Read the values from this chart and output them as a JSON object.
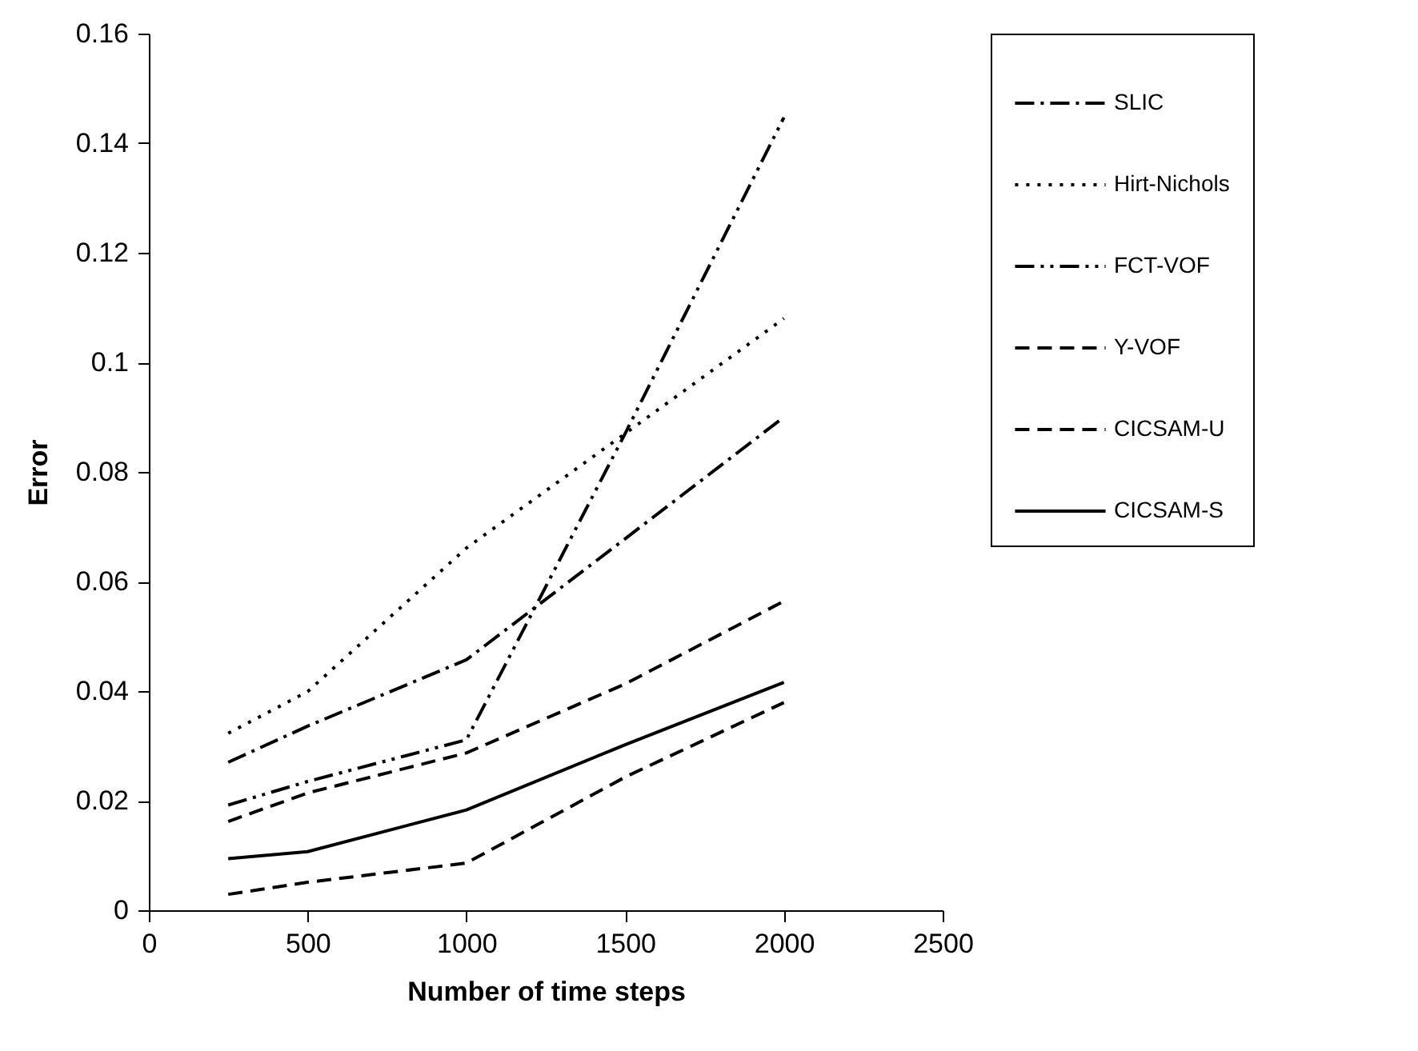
{
  "chart_data": {
    "type": "line",
    "xlabel": "Number of time steps",
    "ylabel": "Error",
    "x": [
      250,
      500,
      1000,
      1500,
      2000
    ],
    "series": [
      {
        "name": "SLIC",
        "color": "#000000",
        "line_style": "dashdot",
        "values": [
          0.027,
          0.0336,
          0.0457,
          0.0678,
          0.09
        ]
      },
      {
        "name": "Hirt-Nichols",
        "color": "#000000",
        "line_style": "dotted",
        "values": [
          0.0323,
          0.0399,
          0.0661,
          0.087,
          0.108
        ]
      },
      {
        "name": "FCT-VOF",
        "color": "#000000",
        "line_style": "dashdotdot",
        "values": [
          0.0192,
          0.0235,
          0.0311,
          0.087,
          0.1447
        ]
      },
      {
        "name": "Y-VOF",
        "color": "#000000",
        "line_style": "dashed",
        "values": [
          0.0029,
          0.0051,
          0.0086,
          0.0243,
          0.0379
        ]
      },
      {
        "name": "CICSAM-U",
        "color": "#000000",
        "line_style": "dashed",
        "values": [
          0.0162,
          0.0214,
          0.0287,
          0.0413,
          0.0564
        ]
      },
      {
        "name": "CICSAM-S",
        "color": "#000000",
        "line_style": "solid",
        "values": [
          0.0094,
          0.0107,
          0.0183,
          0.0302,
          0.0416
        ]
      }
    ],
    "xlim": [
      0,
      2500
    ],
    "xticks": [
      0,
      500,
      1000,
      1500,
      2000,
      2500
    ],
    "ylim": [
      0,
      0.16
    ],
    "yticks": [
      0,
      0.02,
      0.04,
      0.06,
      0.08,
      0.1,
      0.12,
      0.14,
      0.16
    ],
    "grid": false,
    "legend": "right",
    "marker": "none"
  }
}
